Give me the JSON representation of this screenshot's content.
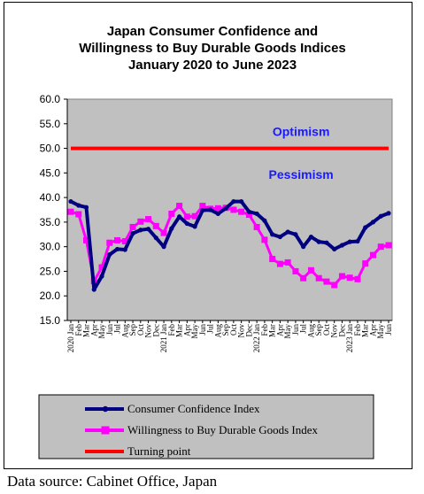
{
  "source_note": "Data source: Cabinet Office, Japan",
  "chart_data": {
    "type": "line",
    "title": [
      "Japan Consumer Confidence and",
      "Willingness  to Buy Durable Goods Indices",
      "January 2020 to June 2023"
    ],
    "ylim": [
      15.0,
      60.0
    ],
    "y_ticks": [
      "15.0",
      "20.0",
      "25.0",
      "30.0",
      "35.0",
      "40.0",
      "45.0",
      "50.0",
      "55.0",
      "60.0"
    ],
    "grid": false,
    "legend_position": "bottom",
    "x": [
      "2020 Jan",
      "Feb",
      "Mar",
      "Apr",
      "May",
      "Jun",
      "Jul",
      "Aug",
      "Sep",
      "Oct",
      "Nov",
      "Dec",
      "2021 Jan",
      "Feb",
      "Mar",
      "Apr",
      "May",
      "Jun",
      "Jul",
      "Aug",
      "Sep",
      "Oct",
      "Nov",
      "Dec",
      "2022 Jan",
      "Feb",
      "Mar",
      "Apr",
      "May",
      "Jun",
      "Jul",
      "Aug",
      "Sep",
      "Oct",
      "Nov",
      "Dec",
      "2023 Jan",
      "Feb",
      "Mar",
      "Apr",
      "May",
      "Jun"
    ],
    "series": [
      {
        "name": "Consumer Confidence Index",
        "color": "#000080",
        "marker": "dot",
        "values": [
          39.2,
          38.4,
          38.0,
          21.3,
          24.0,
          28.4,
          29.5,
          29.4,
          32.7,
          33.4,
          33.6,
          31.8,
          30.0,
          33.7,
          36.1,
          34.7,
          34.1,
          37.4,
          37.5,
          36.7,
          37.8,
          39.2,
          39.2,
          37.1,
          36.7,
          35.3,
          32.5,
          32.0,
          33.0,
          32.5,
          30.0,
          32.0,
          31.0,
          30.8,
          29.5,
          30.3,
          31.0,
          31.1,
          33.9,
          35.0,
          36.2,
          36.8
        ]
      },
      {
        "name": "Willingness to Buy Durable Goods Index",
        "color": "#ff00ff",
        "marker": "square",
        "values": [
          37.1,
          36.6,
          31.3,
          23.0,
          25.8,
          30.8,
          31.3,
          31.1,
          34.0,
          35.1,
          35.6,
          34.2,
          32.8,
          36.7,
          38.3,
          36.1,
          36.2,
          38.3,
          37.7,
          37.8,
          37.9,
          37.5,
          37.1,
          36.5,
          34.0,
          31.4,
          27.5,
          26.5,
          26.8,
          25.0,
          23.6,
          25.2,
          23.6,
          22.9,
          22.2,
          24.0,
          23.7,
          23.4,
          26.6,
          28.3,
          30.0,
          30.3
        ]
      },
      {
        "name": "Turning point",
        "color": "#ff0000",
        "marker": "none",
        "values": [
          50,
          50,
          50,
          50,
          50,
          50,
          50,
          50,
          50,
          50,
          50,
          50,
          50,
          50,
          50,
          50,
          50,
          50,
          50,
          50,
          50,
          50,
          50,
          50,
          50,
          50,
          50,
          50,
          50,
          50,
          50,
          50,
          50,
          50,
          50,
          50,
          50,
          50,
          50,
          50,
          50,
          50
        ]
      }
    ],
    "annotations": [
      {
        "text": "Optimism",
        "x_index": 24,
        "y": 52.5
      },
      {
        "text": "Pessimism",
        "x_index": 24,
        "y": 43.8
      }
    ]
  }
}
